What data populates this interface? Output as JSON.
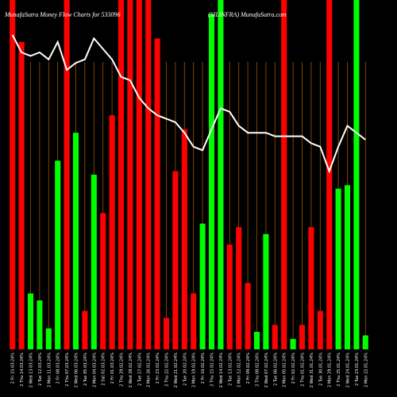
{
  "chart_data": {
    "type": "bar",
    "title": "MunafaSutra  Money Flow  Charts for 533096",
    "subtitle": "(SILINFRA) MunafaSutra.com",
    "categories": [
      "Fri 15 Mar 2024",
      "Thu 14 Mar 2024",
      "Wed 13 Mar 2024",
      "Tue 12 Mar 2024",
      "Mon 11 Mar 2024",
      "Fri 08 Mar 2024",
      "Thu 07 Mar 2024",
      "Wed 06 Mar 2024",
      "Tue 05 Mar 2024",
      "Mon 04 Mar 2024",
      "Sat 02 Mar 2024",
      "Fri 01 Mar 2024",
      "Thu 29 Feb 2024",
      "Wed 28 Feb 2024",
      "Tue 27 Feb 2024",
      "Mon 26 Feb 2024",
      "Fri 23 Feb 2024",
      "Thu 22 Feb 2024",
      "Wed 21 Feb 2024",
      "Tue 20 Feb 2024",
      "Mon 19 Feb 2024",
      "Fri 16 Feb 2024",
      "Thu 15 Feb 2024",
      "Wed 14 Feb 2024",
      "Tue 13 Feb 2024",
      "Mon 12 Feb 2024",
      "Fri 09 Feb 2024",
      "Thu 08 Feb 2024",
      "Wed 07 Feb 2024",
      "Tue 06 Feb 2024",
      "Mon 05 Feb 2024",
      "Fri 02 Feb 2024",
      "Thu 01 Feb 2024",
      "Wed 31 Jan 2024",
      "Tue 30 Jan 2024",
      "Mon 29 Jan 2024",
      "Thu 25 Jan 2024",
      "Wed 24 Jan 2024",
      "Tue 23 Jan 2024",
      "Mon 22 Jan 2024"
    ],
    "x_tick_labels": [
      "2 Fri 15.03.24%",
      "2 Thu 14.03.24%",
      "2 Wed 13.03.24%",
      "2 Tue 12.03.24%",
      "2 Mon 11.03.24%",
      "2 Fri 08.03.24%",
      "2 Thu 07.03.24%",
      "2 Wed 06.03.24%",
      "2 Tue 05.03.24%",
      "2 Mon 04.03.24%",
      "2 Sat 02.03.24%",
      "2 Fri 01.03.24%",
      "2 Thu 29.02.24%",
      "2 Wed 28.02.24%",
      "2 Tue 27.02.24%",
      "2 Mon 26.02.24%",
      "2 Fri 23.02.24%",
      "2 Thu 22.02.24%",
      "2 Wed 21.02.24%",
      "2 Tue 20.02.24%",
      "2 Mon 19.02.24%",
      "2 Fri 16.02.24%",
      "2 Thu 15.02.24%",
      "2 Wed 14.02.24%",
      "2 Tue 13.02.24%",
      "2 Mon 12.02.24%",
      "2 Fri 09.02.24%",
      "2 Thu 08.02.24%",
      "2 Wed 07.02.24%",
      "2 Tue 06.02.24%",
      "2 Mon 05.02.24%",
      "2 Fri 02.02.24%",
      "2 Thu 01.02.24%",
      "2 Wed 31.01.24%",
      "2 Tue 30.01.24%",
      "2 Mon 29.01.24%",
      "2 Thu 25.01.24%",
      "2 Wed 24.01.24%",
      "2 Tue 23.01.24%",
      "2 Mon 22.01.24%"
    ],
    "series": [
      {
        "values": [
          100,
          88,
          16,
          14,
          6,
          54,
          100,
          62,
          11,
          50,
          39,
          67,
          100,
          100,
          100,
          100,
          89,
          9,
          51,
          63,
          16,
          36,
          96,
          100,
          30,
          35,
          19,
          5,
          33,
          7,
          100,
          3,
          7,
          35,
          11,
          100,
          46,
          47,
          100,
          4
        ],
        "directions": [
          "in",
          "in",
          "out",
          "out",
          "out",
          "out",
          "in",
          "out",
          "in",
          "out",
          "in",
          "in",
          "in",
          "in",
          "in",
          "in",
          "in",
          "in",
          "in",
          "in",
          "in",
          "out",
          "out",
          "out",
          "in",
          "in",
          "in",
          "out",
          "out",
          "in",
          "in",
          "out",
          "in",
          "in",
          "in",
          "in",
          "out",
          "out",
          "out",
          "out"
        ]
      },
      {
        "type": "line",
        "values": [
          90,
          85,
          84,
          85,
          83,
          88,
          80,
          82,
          83,
          89,
          86,
          83,
          78,
          77,
          72,
          69,
          67,
          66,
          65,
          62,
          58,
          57,
          63,
          69,
          68,
          64,
          62,
          62,
          62,
          61,
          61,
          61,
          61,
          59,
          58,
          51,
          58,
          64,
          62,
          60
        ]
      }
    ],
    "ylim": [
      0,
      100
    ],
    "colors": {
      "in": "#ff0000",
      "out": "#00ff00",
      "line": "#ffffff",
      "grid": "#a35200",
      "label": "#ffffff",
      "background": "#000000"
    },
    "grid": true
  }
}
